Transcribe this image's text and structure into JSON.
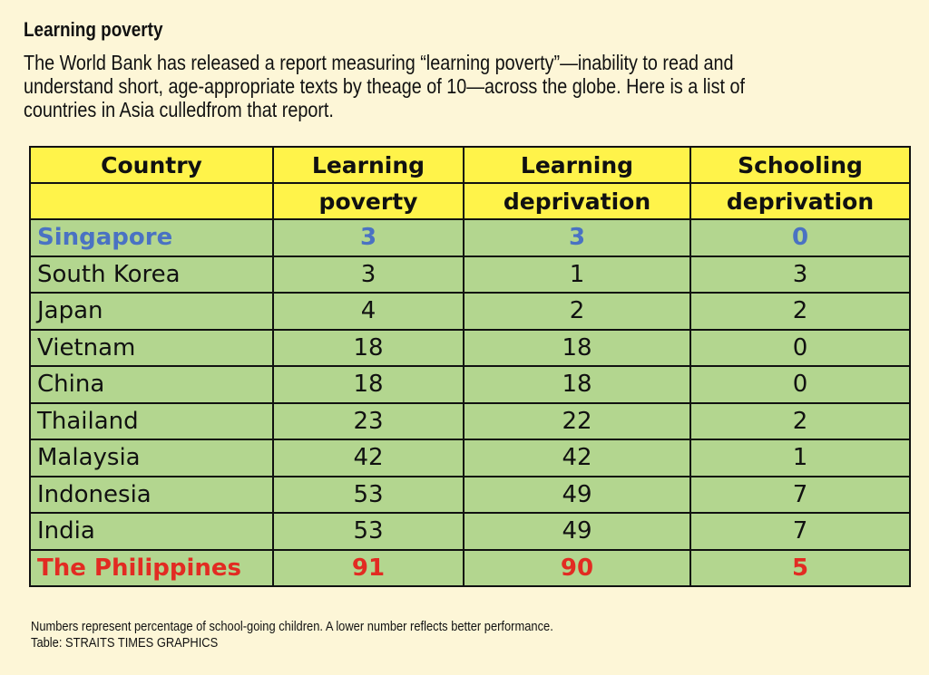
{
  "header": {
    "title": "Learning poverty",
    "intro_lines": [
      "The World Bank has released a report measuring “learning poverty”—inability to read and",
      "understand short, age-appropriate texts by theage of 10—across the globe. Here is a list of",
      "countries in Asia culledfrom that report."
    ]
  },
  "chart_data": {
    "type": "table",
    "columns": [
      {
        "line1": "Country",
        "line2": ""
      },
      {
        "line1": "Learning",
        "line2": "poverty"
      },
      {
        "line1": "Learning",
        "line2": "deprivation"
      },
      {
        "line1": "Schooling",
        "line2": "deprivation"
      }
    ],
    "rows": [
      {
        "country": "Singapore",
        "values": [
          3,
          3,
          0
        ],
        "highlight": "blue"
      },
      {
        "country": "South Korea",
        "values": [
          3,
          1,
          3
        ]
      },
      {
        "country": "Japan",
        "values": [
          4,
          2,
          2
        ]
      },
      {
        "country": "Vietnam",
        "values": [
          18,
          18,
          0
        ]
      },
      {
        "country": "China",
        "values": [
          18,
          18,
          0
        ]
      },
      {
        "country": "Thailand",
        "values": [
          23,
          22,
          2
        ]
      },
      {
        "country": "Malaysia",
        "values": [
          42,
          42,
          1
        ]
      },
      {
        "country": "Indonesia",
        "values": [
          53,
          49,
          7
        ]
      },
      {
        "country": "India",
        "values": [
          53,
          49,
          7
        ]
      },
      {
        "country": "The Philippines",
        "values": [
          91,
          90,
          5
        ],
        "highlight": "red"
      }
    ]
  },
  "footer": {
    "note": "Numbers represent percentage of school-going children. A lower number reflects better performance.",
    "source": "Table: STRAITS TIMES GRAPHICS"
  },
  "colors": {
    "background": "#fdf6d7",
    "header_fill": "#fff34a",
    "row_fill": "#b3d68f",
    "highlight_blue": "#4a72c3",
    "highlight_red": "#e22b22"
  }
}
